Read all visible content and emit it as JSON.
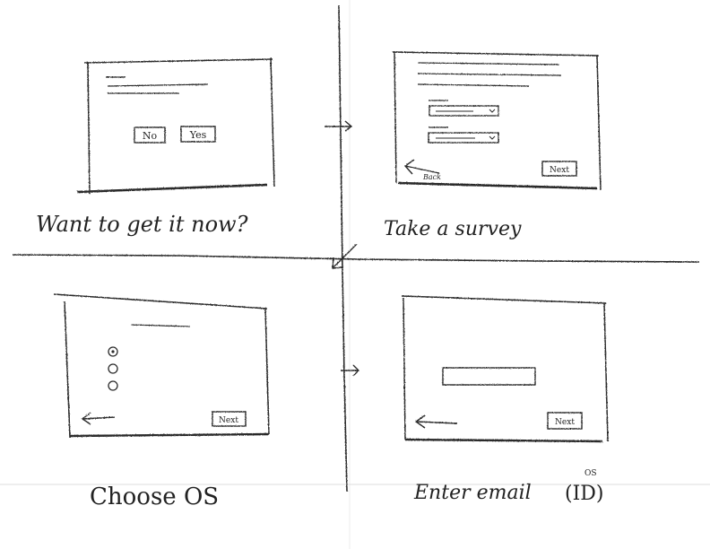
{
  "panels": [
    {
      "caption": "Want to get it now?",
      "buttons": [
        "No",
        "Yes"
      ]
    },
    {
      "caption": "Take a survey",
      "back_label": "Back",
      "next_label": "Next"
    },
    {
      "caption": "Choose OS",
      "next_label": "Next"
    },
    {
      "caption": "Enter email",
      "caption_suffix": "(ID)",
      "superscript": "OS",
      "next_label": "Next"
    }
  ],
  "colors": {
    "pencil": "#2a2a2a",
    "paper": "#ffffff",
    "faint_rule": "#dcdcdc"
  }
}
